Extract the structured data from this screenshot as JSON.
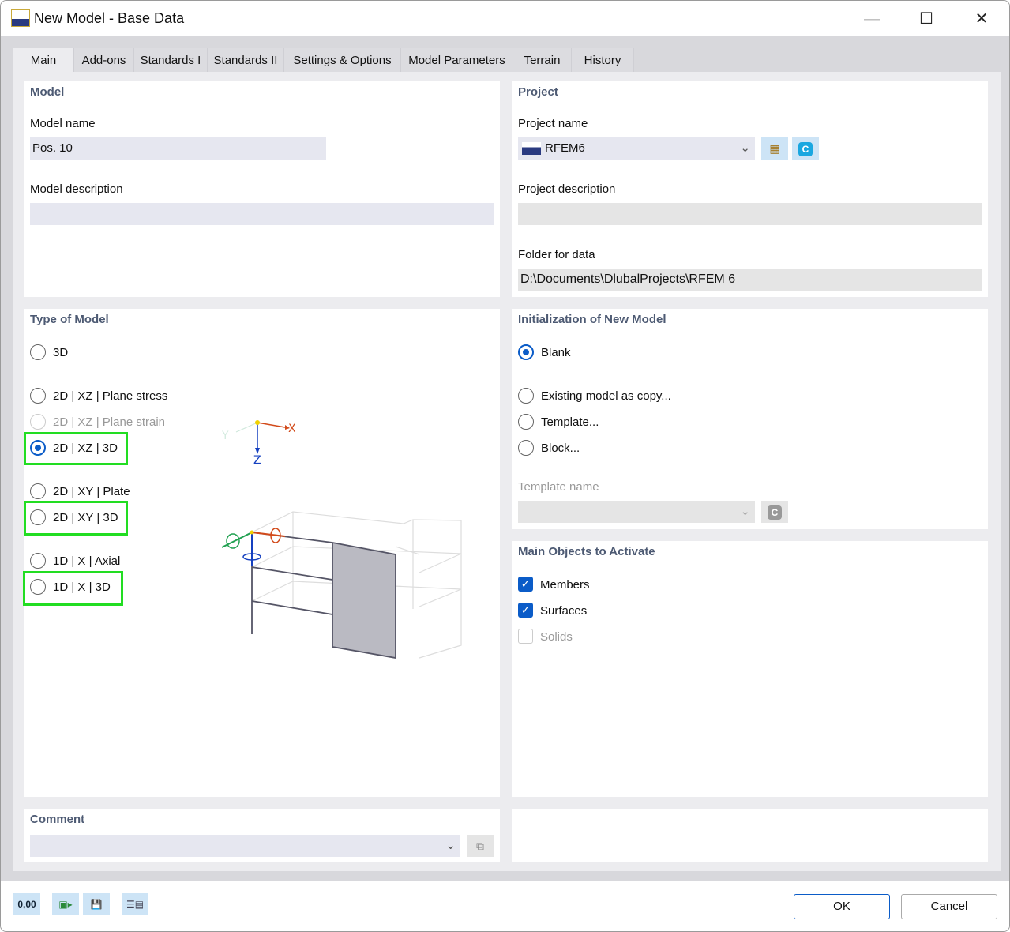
{
  "window": {
    "title": "New Model - Base Data"
  },
  "tabs": [
    "Main",
    "Add-ons",
    "Standards I",
    "Standards II",
    "Settings & Options",
    "Model Parameters",
    "Terrain",
    "History"
  ],
  "model": {
    "title": "Model",
    "name_label": "Model name",
    "name_value": "Pos. 10",
    "description_label": "Model description",
    "description_value": ""
  },
  "project": {
    "title": "Project",
    "name_label": "Project name",
    "name_value": "RFEM6",
    "description_label": "Project description",
    "description_value": "",
    "folder_label": "Folder for data",
    "folder_value": "D:\\Documents\\DlubalProjects\\RFEM 6"
  },
  "type_of_model": {
    "title": "Type of Model",
    "options": [
      {
        "label": "3D",
        "selected": false,
        "enabled": true
      },
      {
        "label": "2D | XZ | Plane stress",
        "selected": false,
        "enabled": true
      },
      {
        "label": "2D | XZ | Plane strain",
        "selected": false,
        "enabled": false
      },
      {
        "label": "2D | XZ | 3D",
        "selected": true,
        "enabled": true,
        "highlighted": true
      },
      {
        "label": "2D | XY | Plate",
        "selected": false,
        "enabled": true
      },
      {
        "label": "2D | XY | 3D",
        "selected": false,
        "enabled": true,
        "highlighted": true
      },
      {
        "label": "1D | X | Axial",
        "selected": false,
        "enabled": true
      },
      {
        "label": "1D | X | 3D",
        "selected": false,
        "enabled": true,
        "highlighted": true
      }
    ],
    "axes": {
      "x": "X",
      "y": "Y",
      "z": "Z"
    }
  },
  "initialization": {
    "title": "Initialization of New Model",
    "options": [
      {
        "label": "Blank",
        "selected": true
      },
      {
        "label": "Existing model as copy...",
        "selected": false
      },
      {
        "label": "Template...",
        "selected": false
      },
      {
        "label": "Block...",
        "selected": false
      }
    ],
    "template_label": "Template name",
    "template_value": ""
  },
  "main_objects": {
    "title": "Main Objects to Activate",
    "items": [
      {
        "label": "Members",
        "checked": true,
        "enabled": true
      },
      {
        "label": "Surfaces",
        "checked": true,
        "enabled": true
      },
      {
        "label": "Solids",
        "checked": false,
        "enabled": false
      }
    ]
  },
  "comment": {
    "title": "Comment",
    "value": ""
  },
  "footer": {
    "ok": "OK",
    "cancel": "Cancel",
    "units_icon_text": "0,00"
  },
  "colors": {
    "highlight": "#22dd22",
    "accent": "#0b5cc8",
    "section_title": "#4d5a73"
  }
}
